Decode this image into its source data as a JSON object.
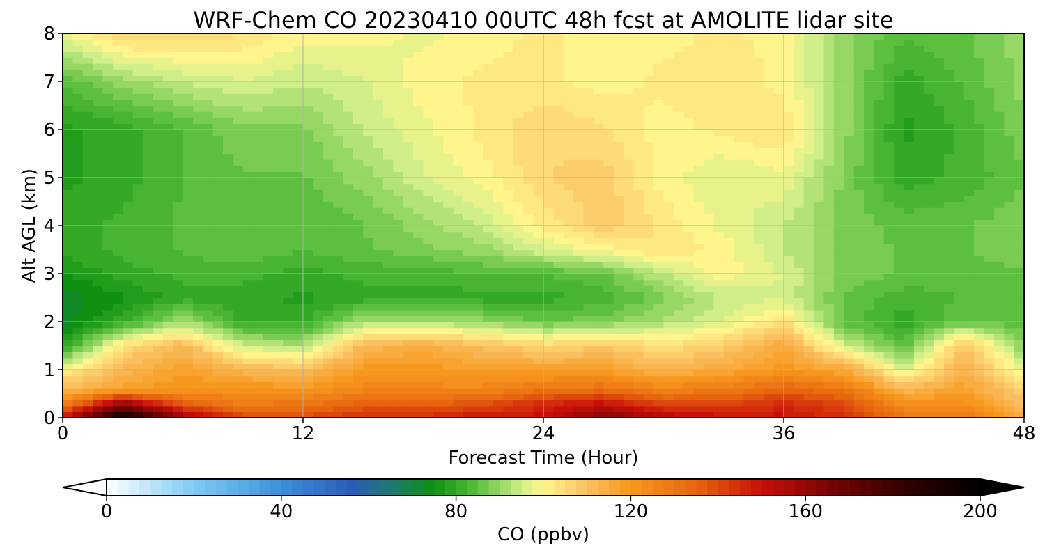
{
  "chart_data": {
    "type": "heatmap",
    "title": "WRF-Chem CO  20230410 00UTC 48h fcst at AMOLITE lidar site",
    "xlabel": "Forecast Time (Hour)",
    "ylabel": "Alt AGL (km)",
    "xlim": [
      0,
      48
    ],
    "ylim": [
      0,
      8
    ],
    "xticks": [
      "0",
      "12",
      "24",
      "36",
      "48"
    ],
    "yticks": [
      "0",
      "1",
      "2",
      "3",
      "4",
      "5",
      "6",
      "7",
      "8"
    ],
    "grid": true,
    "colorbar": {
      "label": "CO  (ppbv)",
      "range": [
        0,
        200
      ],
      "ticks": [
        "0",
        "40",
        "80",
        "120",
        "160",
        "200"
      ],
      "extend": "both",
      "stops": [
        {
          "v": 0,
          "c": "#ffffff"
        },
        {
          "v": 20,
          "c": "#7ecbf5"
        },
        {
          "v": 40,
          "c": "#3f8fd8"
        },
        {
          "v": 56,
          "c": "#2b5cb8"
        },
        {
          "v": 66,
          "c": "#1f7a6a"
        },
        {
          "v": 75,
          "c": "#0f9010"
        },
        {
          "v": 85,
          "c": "#5cbf40"
        },
        {
          "v": 95,
          "c": "#d0ee8a"
        },
        {
          "v": 100,
          "c": "#fff58c"
        },
        {
          "v": 110,
          "c": "#fac060"
        },
        {
          "v": 120,
          "c": "#f7981e"
        },
        {
          "v": 135,
          "c": "#e6650d"
        },
        {
          "v": 150,
          "c": "#c80f0a"
        },
        {
          "v": 165,
          "c": "#7a0505"
        },
        {
          "v": 185,
          "c": "#2a0000"
        },
        {
          "v": 200,
          "c": "#000000"
        }
      ]
    },
    "x_hours": [
      0,
      3,
      6,
      9,
      12,
      15,
      18,
      21,
      24,
      27,
      30,
      33,
      36,
      39,
      42,
      45,
      48
    ],
    "z_km": [
      0,
      0.3,
      0.6,
      1.0,
      1.5,
      2.0,
      2.5,
      3.0,
      3.5,
      4.0,
      5.0,
      6.0,
      7.0,
      8.0
    ],
    "co_ppbv": [
      [
        150,
        195,
        160,
        140,
        140,
        145,
        145,
        150,
        150,
        165,
        155,
        150,
        150,
        145,
        130,
        130,
        115
      ],
      [
        125,
        160,
        135,
        128,
        130,
        135,
        135,
        138,
        145,
        150,
        140,
        140,
        145,
        140,
        122,
        122,
        110
      ],
      [
        112,
        118,
        122,
        122,
        120,
        125,
        125,
        125,
        130,
        132,
        126,
        128,
        135,
        130,
        112,
        118,
        106
      ],
      [
        100,
        112,
        118,
        112,
        110,
        120,
        120,
        118,
        118,
        118,
        112,
        116,
        120,
        116,
        96,
        114,
        98
      ],
      [
        78,
        104,
        112,
        95,
        92,
        112,
        115,
        110,
        106,
        108,
        104,
        108,
        116,
        96,
        84,
        110,
        88
      ],
      [
        72,
        80,
        92,
        80,
        80,
        92,
        92,
        90,
        86,
        88,
        92,
        96,
        104,
        85,
        80,
        86,
        84
      ],
      [
        72,
        76,
        80,
        80,
        78,
        80,
        80,
        80,
        80,
        82,
        88,
        94,
        96,
        86,
        82,
        84,
        85
      ],
      [
        76,
        80,
        82,
        82,
        80,
        82,
        82,
        84,
        84,
        86,
        94,
        100,
        96,
        88,
        86,
        85,
        86
      ],
      [
        80,
        82,
        84,
        86,
        84,
        86,
        88,
        90,
        96,
        100,
        104,
        100,
        94,
        88,
        86,
        86,
        88
      ],
      [
        80,
        82,
        84,
        86,
        84,
        86,
        90,
        94,
        102,
        108,
        103,
        98,
        94,
        88,
        85,
        86,
        88
      ],
      [
        78,
        80,
        84,
        86,
        86,
        90,
        96,
        100,
        106,
        108,
        100,
        96,
        98,
        88,
        80,
        82,
        86
      ],
      [
        78,
        80,
        84,
        88,
        88,
        94,
        98,
        102,
        106,
        104,
        100,
        102,
        104,
        90,
        78,
        82,
        88
      ],
      [
        84,
        90,
        94,
        96,
        94,
        96,
        100,
        102,
        102,
        100,
        102,
        104,
        100,
        90,
        80,
        84,
        90
      ],
      [
        98,
        106,
        106,
        104,
        100,
        100,
        98,
        100,
        102,
        100,
        100,
        102,
        100,
        90,
        84,
        86,
        90
      ]
    ]
  }
}
